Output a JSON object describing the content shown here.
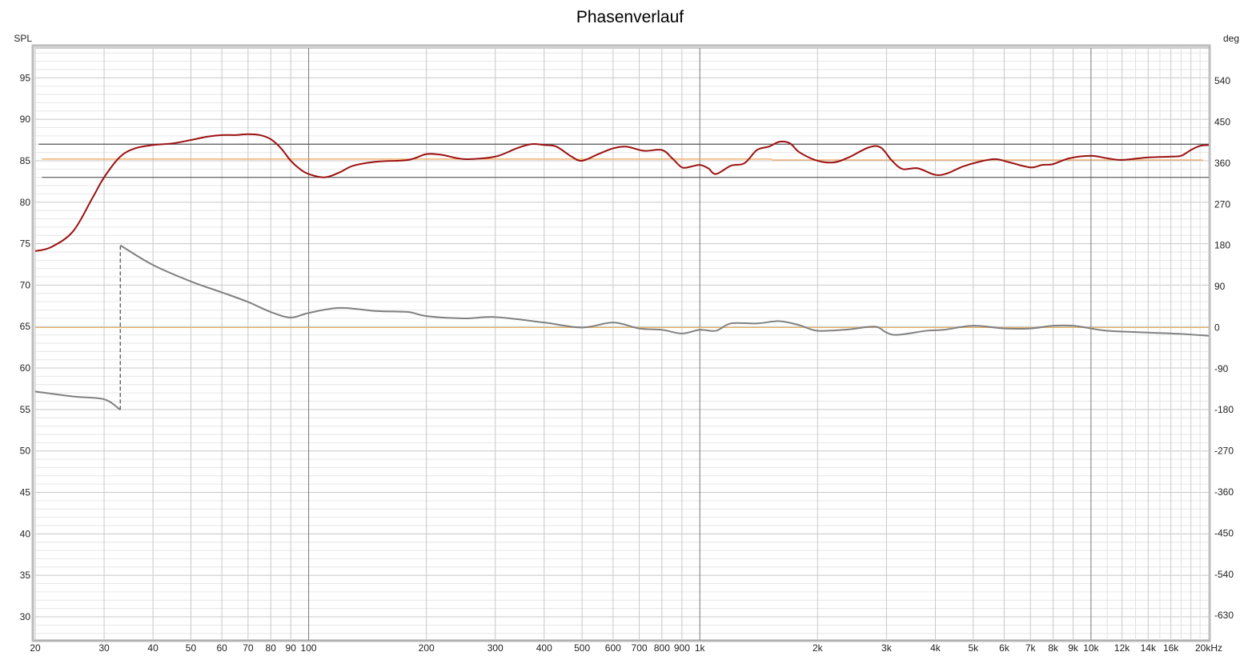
{
  "chart_data": {
    "type": "line",
    "title": "Phasenverlauf",
    "ylabel_left": "SPL",
    "ylabel_right": "deg",
    "x_unit": "kHz",
    "xscale": "log",
    "xlim": [
      20,
      20000
    ],
    "ylim_left": [
      27.2,
      98.6
    ],
    "ylim_right": [
      -684,
      612
    ],
    "grid": true,
    "x_ticks": [
      {
        "v": 20,
        "label": "20"
      },
      {
        "v": 30,
        "label": "30"
      },
      {
        "v": 40,
        "label": "40"
      },
      {
        "v": 50,
        "label": "50"
      },
      {
        "v": 60,
        "label": "60"
      },
      {
        "v": 70,
        "label": "70"
      },
      {
        "v": 80,
        "label": "80"
      },
      {
        "v": 90,
        "label": "90"
      },
      {
        "v": 100,
        "label": "100"
      },
      {
        "v": 200,
        "label": "200"
      },
      {
        "v": 300,
        "label": "300"
      },
      {
        "v": 400,
        "label": "400"
      },
      {
        "v": 500,
        "label": "500"
      },
      {
        "v": 600,
        "label": "600"
      },
      {
        "v": 700,
        "label": "700"
      },
      {
        "v": 800,
        "label": "800"
      },
      {
        "v": 900,
        "label": "900"
      },
      {
        "v": 1000,
        "label": "1k"
      },
      {
        "v": 2000,
        "label": "2k"
      },
      {
        "v": 3000,
        "label": "3k"
      },
      {
        "v": 4000,
        "label": "4k"
      },
      {
        "v": 5000,
        "label": "5k"
      },
      {
        "v": 6000,
        "label": "6k"
      },
      {
        "v": 7000,
        "label": "7k"
      },
      {
        "v": 8000,
        "label": "8k"
      },
      {
        "v": 9000,
        "label": "9k"
      },
      {
        "v": 10000,
        "label": "10k"
      },
      {
        "v": 12000,
        "label": "12k",
        "muted": true
      },
      {
        "v": 14000,
        "label": "14k",
        "muted": true
      },
      {
        "v": 16000,
        "label": "16k",
        "muted": true
      },
      {
        "v": 20000,
        "label": "20kHz"
      }
    ],
    "y_ticks_left": [
      30,
      35,
      40,
      45,
      50,
      55,
      60,
      65,
      70,
      75,
      80,
      85,
      90,
      95
    ],
    "y_ticks_right": [
      -630,
      -540,
      -450,
      -360,
      -270,
      -180,
      -90,
      0,
      90,
      180,
      270,
      360,
      450,
      540
    ],
    "reference_lines": [
      {
        "axis": "left",
        "y": 87,
        "x_from": 20.4,
        "x_to": 20000,
        "color": "#555555"
      },
      {
        "axis": "left",
        "y": 83,
        "x_from": 20.8,
        "x_to": 20000,
        "color": "#555555"
      },
      {
        "axis": "left",
        "y": 85.2,
        "x_from": 20.8,
        "x_to": 1530,
        "color": "#f0a050"
      },
      {
        "axis": "left",
        "y": 85.1,
        "x_from": 1530,
        "x_to": 19300,
        "color": "#f0a050"
      },
      {
        "axis": "right",
        "y": 0,
        "x_from": 20,
        "x_to": 20000,
        "color": "#e8b060"
      }
    ],
    "series": [
      {
        "axis": "left",
        "color": "#9b1010",
        "x": [
          20,
          22,
          25,
          28,
          30,
          33,
          36,
          40,
          45,
          50,
          55,
          60,
          65,
          70,
          75,
          80,
          85,
          90,
          95,
          100,
          110,
          120,
          130,
          150,
          180,
          200,
          220,
          250,
          300,
          340,
          370,
          400,
          430,
          470,
          500,
          550,
          600,
          650,
          720,
          800,
          850,
          900,
          950,
          1000,
          1050,
          1100,
          1200,
          1300,
          1400,
          1500,
          1600,
          1700,
          1800,
          2000,
          2200,
          2400,
          2700,
          2900,
          3100,
          3300,
          3600,
          4000,
          4300,
          4700,
          5200,
          5700,
          6200,
          7000,
          7500,
          8000,
          8800,
          10000,
          11000,
          12000,
          14000,
          16000,
          17000,
          18000,
          19000,
          20000
        ],
        "y": [
          74.1,
          74.6,
          76.5,
          80.5,
          83,
          85.5,
          86.5,
          86.9,
          87.1,
          87.5,
          87.9,
          88.1,
          88.1,
          88.2,
          88.1,
          87.6,
          86.5,
          85,
          84,
          83.4,
          83,
          83.6,
          84.4,
          84.9,
          85.1,
          85.8,
          85.7,
          85.2,
          85.5,
          86.5,
          87,
          86.9,
          86.7,
          85.5,
          85,
          85.8,
          86.5,
          86.7,
          86.2,
          86.3,
          85.3,
          84.2,
          84.3,
          84.5,
          84.1,
          83.4,
          84.4,
          84.7,
          86.3,
          86.7,
          87.3,
          87.1,
          86,
          85,
          84.8,
          85.4,
          86.6,
          86.6,
          85,
          84,
          84.1,
          83.3,
          83.5,
          84.3,
          84.9,
          85.2,
          84.8,
          84.2,
          84.5,
          84.6,
          85.3,
          85.6,
          85.3,
          85.1,
          85.4,
          85.5,
          85.6,
          86.3,
          86.8,
          86.9
        ]
      },
      {
        "axis": "right",
        "color": "#808080",
        "x": [
          20,
          25,
          30,
          33,
          33.01,
          40,
          50,
          60,
          70,
          80,
          90,
          100,
          120,
          150,
          180,
          200,
          250,
          300,
          400,
          500,
          600,
          700,
          800,
          900,
          1000,
          1100,
          1200,
          1400,
          1600,
          1800,
          2000,
          2400,
          2800,
          3000,
          3200,
          3800,
          4200,
          5000,
          6000,
          7000,
          8000,
          9000,
          10000,
          11000,
          14000,
          17000,
          20000
        ],
        "y": [
          -140,
          -151,
          -157,
          -180,
          180,
          137,
          101,
          77,
          56,
          34,
          22,
          32,
          43,
          36,
          34,
          25,
          20,
          23,
          11,
          0,
          11,
          -2,
          -5,
          -13,
          -5,
          -7,
          9,
          9,
          14,
          5,
          -7,
          -4,
          2,
          -11,
          -16,
          -7,
          -5,
          4,
          -2,
          -2,
          4,
          4,
          -2,
          -7,
          -11,
          -14,
          -18
        ]
      }
    ]
  }
}
